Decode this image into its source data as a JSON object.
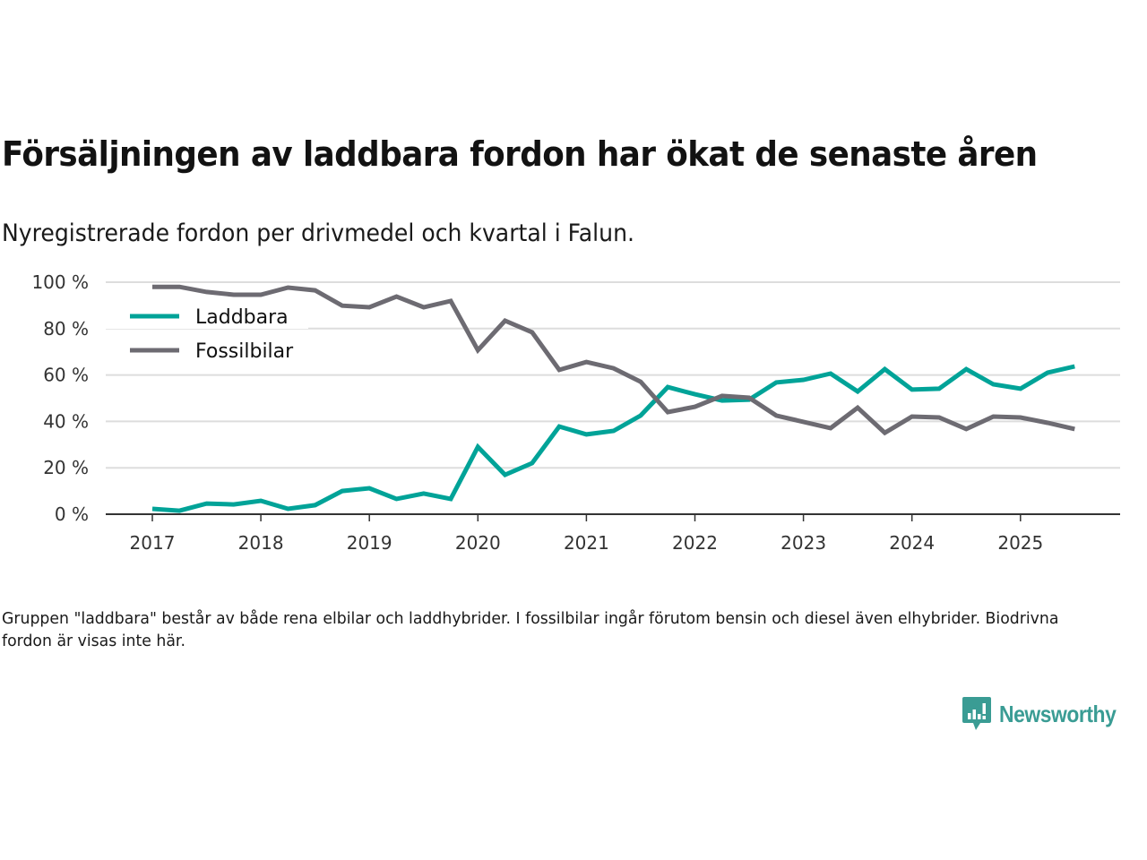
{
  "chart_data": {
    "type": "line",
    "title": "Försäljningen av laddbara fordon har ökat de senaste åren",
    "subtitle": "Nyregistrerade fordon per drivmedel och kvartal i Falun.",
    "xlabel": "",
    "ylabel": "",
    "ylim": [
      0,
      100
    ],
    "yticks": [
      "0 %",
      "20 %",
      "40 %",
      "60 %",
      "80 %",
      "100 %"
    ],
    "ytick_values": [
      0,
      20,
      40,
      60,
      80,
      100
    ],
    "xticks": [
      "2017",
      "2018",
      "2019",
      "2020",
      "2021",
      "2022",
      "2023",
      "2024",
      "2025"
    ],
    "x_start_year": 2017,
    "x_end": 2026.25,
    "points_per_year": 4,
    "grid": true,
    "legend_position": "top-left",
    "series": [
      {
        "name": "Laddbara",
        "color": "#00a398",
        "values": [
          2.3,
          1.5,
          4.6,
          4.2,
          5.8,
          2.3,
          3.9,
          10.0,
          11.2,
          6.6,
          8.9,
          6.6,
          29.0,
          17.0,
          22.0,
          37.8,
          34.4,
          35.9,
          42.5,
          54.8,
          51.7,
          49.0,
          49.4,
          56.8,
          57.9,
          60.6,
          52.9,
          62.5,
          53.7,
          54.1,
          62.5,
          56.0,
          54.1,
          61.0,
          63.7
        ]
      },
      {
        "name": "Fossilbilar",
        "color": "#6d6b72",
        "values": [
          98.0,
          98.0,
          95.8,
          94.6,
          94.6,
          97.7,
          96.5,
          89.9,
          89.2,
          93.8,
          89.2,
          91.9,
          70.7,
          83.4,
          78.4,
          62.2,
          65.6,
          62.9,
          57.1,
          44.0,
          46.3,
          51.0,
          50.2,
          42.5,
          39.8,
          37.1,
          45.9,
          35.1,
          42.1,
          41.7,
          36.7,
          42.1,
          41.7,
          39.4,
          36.7
        ]
      }
    ]
  },
  "footnote": "Gruppen \"laddbara\" består av både rena elbilar och laddhybrider. I fossilbilar ingår förutom bensin och diesel även elhybrider. Biodrivna fordon är visas inte här.",
  "brand": {
    "name": "Newsworthy",
    "color": "#3a9c94",
    "icon": "bar-chart-speech-bubble-icon"
  }
}
